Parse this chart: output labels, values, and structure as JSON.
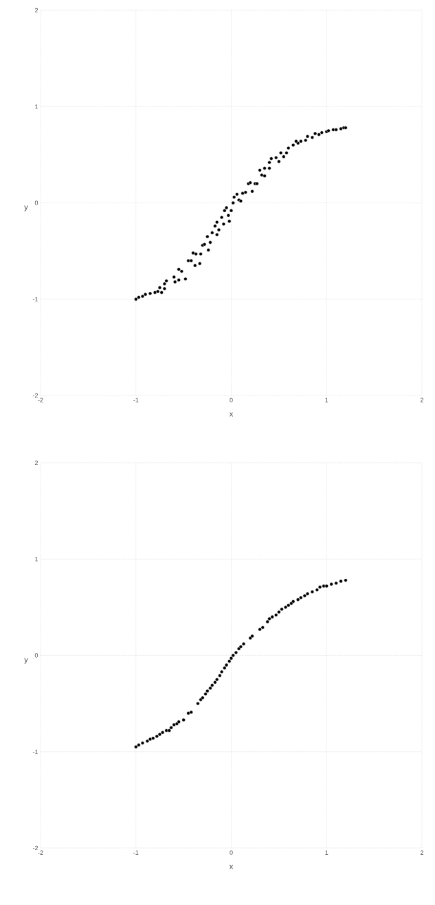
{
  "chart_data": [
    {
      "type": "scatter",
      "xlabel": "x",
      "ylabel": "y",
      "color": "#000000",
      "marker": "circle",
      "grid": true,
      "xlim": [
        -2,
        2
      ],
      "ylim": [
        -2,
        2
      ],
      "xticks": [
        -2,
        -1,
        0,
        1,
        2
      ],
      "yticks": [
        -2,
        -1,
        0,
        1,
        2
      ],
      "x": [
        -1.0,
        -0.97,
        -0.93,
        -0.9,
        -0.85,
        -0.8,
        -0.77,
        -0.75,
        -0.73,
        -0.7,
        -0.68,
        -0.7,
        -0.6,
        -0.59,
        -0.55,
        -0.55,
        -0.52,
        -0.48,
        -0.45,
        -0.42,
        -0.4,
        -0.37,
        -0.38,
        -0.33,
        -0.32,
        -0.3,
        -0.28,
        -0.25,
        -0.24,
        -0.22,
        -0.2,
        -0.17,
        -0.15,
        -0.15,
        -0.13,
        -0.1,
        -0.08,
        -0.07,
        -0.05,
        -0.03,
        -0.02,
        0.0,
        0.02,
        0.03,
        0.06,
        0.08,
        0.1,
        0.12,
        0.15,
        0.18,
        0.2,
        0.22,
        0.25,
        0.27,
        0.3,
        0.32,
        0.35,
        0.35,
        0.4,
        0.42,
        0.4,
        0.47,
        0.5,
        0.52,
        0.55,
        0.58,
        0.6,
        0.65,
        0.7,
        0.73,
        0.68,
        0.78,
        0.8,
        0.85,
        0.88,
        0.92,
        0.95,
        1.0,
        1.02,
        1.07,
        1.1,
        1.15,
        1.18,
        1.2
      ],
      "values": [
        -1.0,
        -0.98,
        -0.97,
        -0.95,
        -0.94,
        -0.93,
        -0.92,
        -0.88,
        -0.93,
        -0.84,
        -0.81,
        -0.89,
        -0.77,
        -0.82,
        -0.8,
        -0.69,
        -0.71,
        -0.79,
        -0.6,
        -0.6,
        -0.52,
        -0.53,
        -0.65,
        -0.63,
        -0.53,
        -0.44,
        -0.43,
        -0.35,
        -0.49,
        -0.41,
        -0.31,
        -0.24,
        -0.33,
        -0.2,
        -0.28,
        -0.15,
        -0.22,
        -0.08,
        -0.05,
        -0.13,
        -0.19,
        -0.08,
        0.0,
        0.06,
        0.09,
        0.03,
        0.02,
        0.1,
        0.11,
        0.2,
        0.21,
        0.12,
        0.2,
        0.2,
        0.34,
        0.29,
        0.36,
        0.28,
        0.42,
        0.46,
        0.36,
        0.47,
        0.43,
        0.52,
        0.48,
        0.52,
        0.57,
        0.6,
        0.62,
        0.64,
        0.64,
        0.65,
        0.69,
        0.68,
        0.72,
        0.71,
        0.73,
        0.74,
        0.75,
        0.76,
        0.76,
        0.77,
        0.78,
        0.78
      ]
    },
    {
      "type": "scatter",
      "xlabel": "x",
      "ylabel": "y",
      "color": "#000000",
      "marker": "circle",
      "grid": true,
      "xlim": [
        -2,
        2
      ],
      "ylim": [
        -2,
        2
      ],
      "xticks": [
        -2,
        -1,
        0,
        1,
        2
      ],
      "yticks": [
        -2,
        -1,
        0,
        1,
        2
      ],
      "x": [
        -1.0,
        -0.97,
        -0.93,
        -0.88,
        -0.85,
        -0.82,
        -0.78,
        -0.75,
        -0.72,
        -0.68,
        -0.65,
        -0.63,
        -0.6,
        -0.57,
        -0.55,
        -0.5,
        -0.45,
        -0.42,
        -0.35,
        -0.32,
        -0.3,
        -0.27,
        -0.25,
        -0.22,
        -0.2,
        -0.17,
        -0.15,
        -0.12,
        -0.1,
        -0.07,
        -0.05,
        -0.02,
        0.0,
        0.02,
        0.05,
        0.08,
        0.1,
        0.13,
        0.2,
        0.22,
        0.3,
        0.33,
        0.38,
        0.4,
        0.43,
        0.47,
        0.5,
        0.53,
        0.57,
        0.6,
        0.63,
        0.65,
        0.7,
        0.73,
        0.77,
        0.8,
        0.85,
        0.9,
        0.93,
        0.97,
        1.0,
        1.05,
        1.1,
        1.15,
        1.2
      ],
      "values": [
        -0.95,
        -0.93,
        -0.91,
        -0.89,
        -0.87,
        -0.86,
        -0.84,
        -0.82,
        -0.8,
        -0.78,
        -0.78,
        -0.75,
        -0.72,
        -0.71,
        -0.69,
        -0.67,
        -0.6,
        -0.59,
        -0.5,
        -0.46,
        -0.44,
        -0.4,
        -0.37,
        -0.34,
        -0.31,
        -0.28,
        -0.25,
        -0.21,
        -0.17,
        -0.13,
        -0.1,
        -0.06,
        -0.03,
        0.0,
        0.03,
        0.07,
        0.09,
        0.12,
        0.18,
        0.2,
        0.27,
        0.29,
        0.35,
        0.38,
        0.4,
        0.42,
        0.45,
        0.48,
        0.5,
        0.52,
        0.54,
        0.56,
        0.58,
        0.6,
        0.62,
        0.64,
        0.66,
        0.68,
        0.71,
        0.72,
        0.72,
        0.74,
        0.75,
        0.77,
        0.78
      ]
    }
  ]
}
